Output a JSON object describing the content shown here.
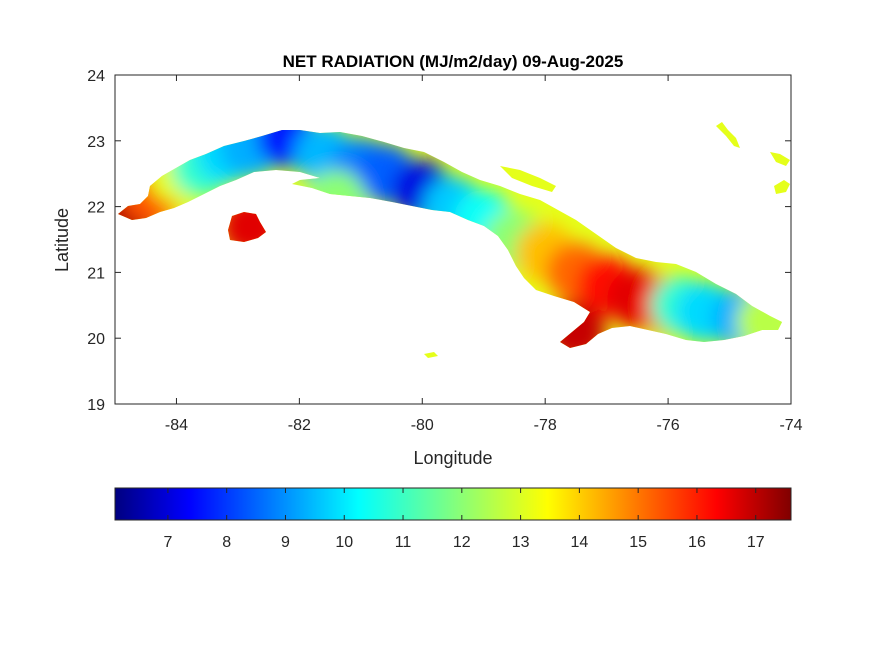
{
  "map": {
    "title": "NET RADIATION (MJ/m2/day) 09-Aug-2025",
    "xlabel": "Longitude",
    "ylabel": "Latitude",
    "xlim": [
      -85,
      -74
    ],
    "ylim": [
      19,
      24
    ],
    "xticks": [
      -84,
      -82,
      -80,
      -78,
      -76,
      -74
    ],
    "yticks": [
      19,
      20,
      21,
      22,
      23,
      24
    ],
    "grid": false,
    "colormap": "jet",
    "region": "Cuba",
    "colorbar": {
      "location": "south",
      "range": [
        6.1,
        17.6
      ],
      "ticks": [
        7,
        8,
        9,
        10,
        11,
        12,
        13,
        14,
        15,
        16,
        17
      ]
    },
    "field": [
      {
        "lon": -84.8,
        "lat": 21.9,
        "value": 17.0
      },
      {
        "lon": -84.4,
        "lat": 22.2,
        "value": 15.2
      },
      {
        "lon": -84.0,
        "lat": 22.5,
        "value": 13.0
      },
      {
        "lon": -83.6,
        "lat": 22.6,
        "value": 11.0
      },
      {
        "lon": -83.2,
        "lat": 22.8,
        "value": 10.0
      },
      {
        "lon": -82.8,
        "lat": 22.9,
        "value": 9.5
      },
      {
        "lon": -82.2,
        "lat": 23.05,
        "value": 7.8
      },
      {
        "lon": -81.6,
        "lat": 22.8,
        "value": 9.6
      },
      {
        "lon": -81.0,
        "lat": 22.6,
        "value": 9.0
      },
      {
        "lon": -80.6,
        "lat": 22.5,
        "value": 8.6
      },
      {
        "lon": -80.0,
        "lat": 22.25,
        "value": 7.2
      },
      {
        "lon": -79.5,
        "lat": 22.0,
        "value": 9.8
      },
      {
        "lon": -79.0,
        "lat": 21.8,
        "value": 10.5
      },
      {
        "lon": -78.5,
        "lat": 21.5,
        "value": 12.0
      },
      {
        "lon": -78.0,
        "lat": 21.3,
        "value": 14.0
      },
      {
        "lon": -77.5,
        "lat": 21.0,
        "value": 15.0
      },
      {
        "lon": -77.0,
        "lat": 20.8,
        "value": 16.0
      },
      {
        "lon": -76.5,
        "lat": 20.6,
        "value": 16.5
      },
      {
        "lon": -76.0,
        "lat": 20.5,
        "value": 15.8
      },
      {
        "lon": -75.8,
        "lat": 20.5,
        "value": 11.0
      },
      {
        "lon": -75.4,
        "lat": 20.4,
        "value": 10.0
      },
      {
        "lon": -74.8,
        "lat": 20.3,
        "value": 9.5
      },
      {
        "lon": -74.4,
        "lat": 20.25,
        "value": 12.5
      },
      {
        "lon": -77.5,
        "lat": 20.1,
        "value": 16.8
      },
      {
        "lon": -82.8,
        "lat": 21.7,
        "value": 16.5
      },
      {
        "lon": -81.4,
        "lat": 22.1,
        "value": 12.0
      }
    ]
  }
}
